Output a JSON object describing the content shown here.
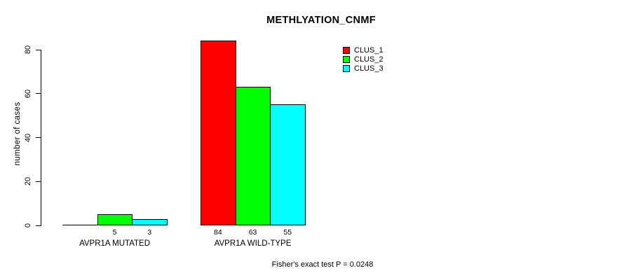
{
  "chart_data": {
    "type": "bar",
    "title": "METHLYATION_CNMF",
    "xlabel": "",
    "ylabel": "number of cases",
    "ylim": [
      0,
      84
    ],
    "yticks": [
      0,
      20,
      40,
      60,
      80
    ],
    "grid": false,
    "categories": [
      "AVPR1A MUTATED",
      "AVPR1A WILD-TYPE"
    ],
    "series": [
      {
        "name": "CLUS_1",
        "color": "#ff0000",
        "values": [
          0,
          84
        ]
      },
      {
        "name": "CLUS_2",
        "color": "#00ff00",
        "values": [
          5,
          63
        ]
      },
      {
        "name": "CLUS_3",
        "color": "#00ffff",
        "values": [
          3,
          55
        ]
      }
    ],
    "bar_value_labels": [
      [
        "",
        "5",
        "3"
      ],
      [
        "84",
        "63",
        "55"
      ]
    ],
    "legend": {
      "position": "top-right",
      "entries": [
        "CLUS_1",
        "CLUS_2",
        "CLUS_3"
      ]
    },
    "annotation": "Fisher's exact test P = 0.0248"
  },
  "colors": {
    "background": "#ffffff",
    "axis": "#000000",
    "bar_border": "#000000",
    "text": "#000000"
  }
}
